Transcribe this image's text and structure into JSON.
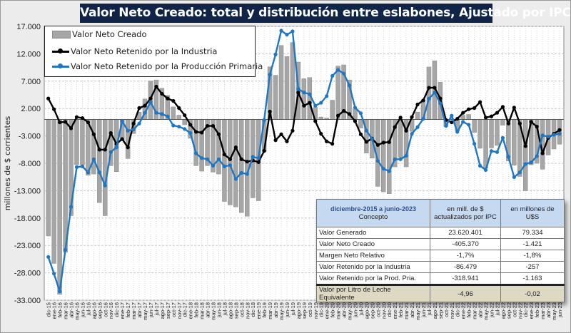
{
  "title": "Valor Neto Creado: total y distribución  entre eslabones, Ajustado  por IPC",
  "colors": {
    "title_bg": "#0f2446",
    "bars": "#a6a6a6",
    "industria": "#000000",
    "primaria": "#1f77c4",
    "table_header": "#c5d9f1",
    "table_last_row": "#ddd9c3"
  },
  "chart_data": {
    "type": "bar+line",
    "ylabel": "millones de $ corrientes",
    "ylim": [
      -33000,
      17000
    ],
    "yticks": [
      17000,
      12000,
      7000,
      2000,
      -3000,
      -8000,
      -13000,
      -18000,
      -23000,
      -28000,
      -33000
    ],
    "ytick_labels": [
      "17.000",
      "12.000",
      "7.000",
      "2.000",
      "-3.000",
      "-8.000",
      "-13.000",
      "-18.000",
      "-23.000",
      "-28.000",
      "-33.000"
    ],
    "grid": true,
    "legend_placement": "top-left",
    "categories": [
      "dic-15",
      "ene-16",
      "feb-16",
      "mar-16",
      "abr-16",
      "may-16",
      "jun-16",
      "jul-16",
      "ago-16",
      "sep-16",
      "oct-16",
      "nov-16",
      "dic-16",
      "ene-17",
      "feb-17",
      "mar-17",
      "abr-17",
      "may-17",
      "jun-17",
      "jul-17",
      "ago-17",
      "sep-17",
      "oct-17",
      "nov-17",
      "dic-17",
      "ene-18",
      "feb-18",
      "mar-18",
      "abr-18",
      "may-18",
      "jun-18",
      "jul-18",
      "ago-18",
      "sep-18",
      "oct-18",
      "nov-18",
      "dic-18",
      "ene-19",
      "feb-19",
      "mar-19",
      "abr-19",
      "may-19",
      "jun-19",
      "jul-19",
      "ago-19",
      "sep-19",
      "oct-19",
      "nov-19",
      "dic-19",
      "ene-20",
      "feb-20",
      "mar-20",
      "abr-20",
      "may-20",
      "jun-20",
      "jul-20",
      "ago-20",
      "sep-20",
      "oct-20",
      "nov-20",
      "dic-20",
      "ene-21",
      "feb-21",
      "mar-21",
      "abr-21",
      "may-21",
      "jun-21",
      "jul-21",
      "ago-21",
      "sep-21",
      "oct-21",
      "nov-21",
      "dic-21",
      "ene-22",
      "feb-22",
      "mar-22",
      "abr-22",
      "may-22",
      "jun-22",
      "jul-22",
      "ago-22",
      "sep-22",
      "oct-22",
      "nov-22",
      "dic-22",
      "ene-23",
      "feb-23",
      "mar-23",
      "abr-23",
      "may-23",
      "jun-23"
    ],
    "series": [
      {
        "name": "Valor Neto Creado",
        "kind": "bar",
        "values": [
          -21270,
          -26280,
          -31920,
          -24235,
          -17570,
          -8265,
          -8310,
          -10180,
          -9960,
          -15180,
          -17570,
          -8440,
          -9530,
          -3870,
          -7140,
          -2570,
          1350,
          3740,
          7010,
          7220,
          5700,
          4395,
          2290,
          790,
          -960,
          -3440,
          -8440,
          -9440,
          -8430,
          -9610,
          -9960,
          -14970,
          -15610,
          -15960,
          -17000,
          -17660,
          -14310,
          -14840,
          -5827,
          9620,
          8080,
          13520,
          11490,
          14060,
          10490,
          7440,
          7660,
          2220,
          450,
          260,
          3520,
          9750,
          9970,
          7220,
          1880,
          -1570,
          -6130,
          -7050,
          -12220,
          -13220,
          -13570,
          -8650,
          -6910,
          -8650,
          -2175,
          1350,
          3610,
          9590,
          10710,
          6790,
          -1257,
          180,
          -2130,
          785,
          910,
          -2350,
          -5260,
          -8870,
          -5195,
          -4740,
          -1050,
          -7570,
          -8350,
          -10400,
          -13010,
          -8265,
          -8000,
          -9090,
          -6480,
          -5390,
          -4520
        ]
      },
      {
        "name": "Valor Neto Retenido por la Industria",
        "kind": "line",
        "values": [
          3830,
          1870,
          -520,
          -435,
          -1610,
          435,
          260,
          -520,
          -2700,
          -5520,
          -5520,
          -2480,
          -4440,
          -3570,
          -5090,
          -740,
          2090,
          2520,
          3830,
          6000,
          4700,
          3830,
          3390,
          2090,
          780,
          -960,
          -2260,
          -2390,
          -1170,
          -1170,
          -2700,
          -6400,
          -7260,
          -5090,
          -7260,
          -7700,
          -7480,
          -7790,
          -5740,
          1440,
          -3790,
          -2700,
          -4000,
          -2040,
          4920,
          2520,
          3050,
          -300,
          -2600,
          -4000,
          -4440,
          700,
          1570,
          1000,
          -300,
          -2700,
          -4090,
          -3480,
          -4650,
          -4220,
          -4130,
          -1390,
          350,
          -2040,
          435,
          2740,
          3480,
          5790,
          5790,
          3830,
          -87,
          -520,
          130,
          1220,
          1870,
          2090,
          3180,
          350,
          565,
          1220,
          2300,
          -740,
          2180,
          -740,
          -4870,
          -435,
          -1300,
          -6180,
          -3350,
          -2610,
          -1910
        ]
      },
      {
        "name": "Valor Neto Retenido por la Producción Primaria",
        "kind": "line",
        "values": [
          -25100,
          -28150,
          -31400,
          -23800,
          -15960,
          -8700,
          -8570,
          -9660,
          -7260,
          -9660,
          -12050,
          -5960,
          -5090,
          -300,
          -2050,
          -1830,
          -740,
          1220,
          3180,
          1220,
          1000,
          565,
          -1100,
          -1300,
          -1740,
          -2480,
          -6180,
          -7050,
          -7260,
          -8440,
          -7260,
          -8570,
          -8350,
          -10870,
          -9740,
          -9960,
          -6830,
          -7050,
          -87,
          8180,
          11870,
          16220,
          15490,
          16100,
          5570,
          4920,
          4610,
          2520,
          3050,
          4260,
          7960,
          9050,
          8400,
          6220,
          2180,
          1130,
          -2040,
          -3570,
          -7570,
          -9000,
          -9440,
          -7260,
          -7260,
          -6610,
          -2610,
          -1390,
          130,
          3800,
          4920,
          2960,
          -1170,
          700,
          -2260,
          -435,
          -960,
          -4440,
          -8440,
          -9220,
          -5760,
          -5960,
          -3350,
          -6830,
          -10530,
          -9660,
          -8140,
          -7830,
          -6700,
          -2910,
          -3130,
          -2780,
          -2610
        ]
      }
    ]
  },
  "table": {
    "period": "diciembre-2015 a junio-2023",
    "concept_header": "Concepto",
    "col_pesos": "en mill. de $ actualizados por IPC",
    "col_usd": "en millones de U$S",
    "rows": [
      {
        "concepto": "Valor Generado",
        "pesos": "23.620.401",
        "usd": "79.334"
      },
      {
        "concepto": "Valor Neto Creado",
        "pesos": "-405.370",
        "usd": "-1.421"
      },
      {
        "concepto": "Margen Neto Relativo",
        "pesos": "-1,7%",
        "usd": "-1,8%"
      },
      {
        "concepto": "Valor Retenido por la Industria",
        "pesos": "-86.479",
        "usd": "-257"
      },
      {
        "concepto": "Valor Retenido por la Prod. Pria.",
        "pesos": "-318.941",
        "usd": "-1.163"
      },
      {
        "concepto": "Valor por Litro de Leche Equivalente",
        "pesos": "-4,96",
        "usd": "-0,02"
      }
    ]
  }
}
